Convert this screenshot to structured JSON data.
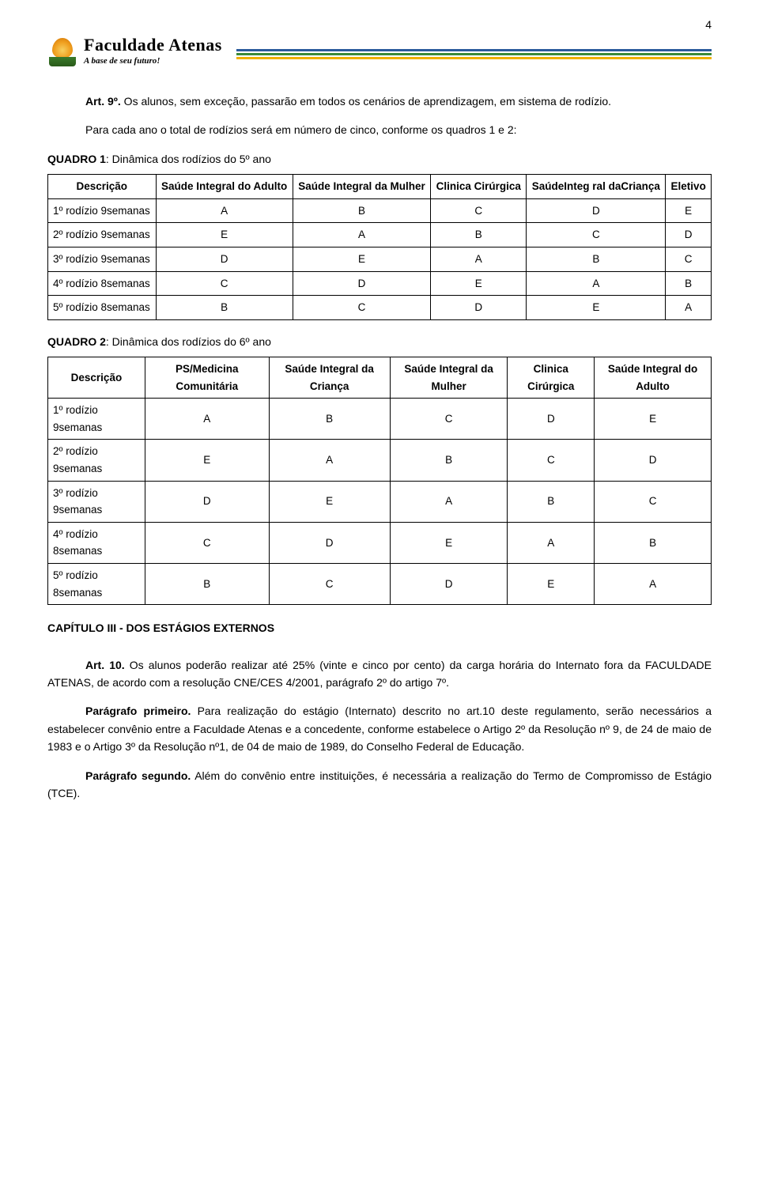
{
  "page_number": "4",
  "brand": {
    "name": "Faculdade Atenas",
    "tagline": "A base de seu futuro!"
  },
  "header_colors": [
    "#2a5a9c",
    "#3a8a3a",
    "#f0b000"
  ],
  "intro": {
    "art_label": "Art. 9º.",
    "art_text": " Os alunos, sem exceção, passarão em todos os cenários de aprendizagem, em sistema de rodízio.",
    "para2": "Para cada ano o total de rodízios será em número de cinco, conforme os quadros 1 e 2:"
  },
  "quadro1": {
    "title_bold": "QUADRO 1",
    "title_rest": ": Dinâmica dos rodízios do 5º ano",
    "columns": [
      "Descrição",
      "Saúde Integral do Adulto",
      "Saúde Integral da Mulher",
      "Clinica Cirúrgica",
      "SaúdeInteg ral daCriança",
      "Eletivo"
    ],
    "rows": [
      {
        "desc": "1º rodízio 9semanas",
        "cells": [
          "A",
          "B",
          "C",
          "D",
          "E"
        ]
      },
      {
        "desc": "2º rodízio 9semanas",
        "cells": [
          "E",
          "A",
          "B",
          "C",
          "D"
        ]
      },
      {
        "desc": "3º rodízio 9semanas",
        "cells": [
          "D",
          "E",
          "A",
          "B",
          "C"
        ]
      },
      {
        "desc": "4º rodízio 8semanas",
        "cells": [
          "C",
          "D",
          "E",
          "A",
          "B"
        ]
      },
      {
        "desc": "5º rodízio 8semanas",
        "cells": [
          "B",
          "C",
          "D",
          "E",
          "A"
        ]
      }
    ]
  },
  "quadro2": {
    "title_bold": "QUADRO 2",
    "title_rest": ": Dinâmica dos rodízios do 6º ano",
    "columns": [
      "Descrição",
      "PS/Medicina Comunitária",
      "Saúde Integral da Criança",
      "Saúde Integral da Mulher",
      "Clinica Cirúrgica",
      "Saúde Integral do Adulto"
    ],
    "rows": [
      {
        "desc": "1º rodízio 9semanas",
        "cells": [
          "A",
          "B",
          "C",
          "D",
          "E"
        ]
      },
      {
        "desc": "2º rodízio 9semanas",
        "cells": [
          "E",
          "A",
          "B",
          "C",
          "D"
        ]
      },
      {
        "desc": "3º rodízio 9semanas",
        "cells": [
          "D",
          "E",
          "A",
          "B",
          "C"
        ]
      },
      {
        "desc": "4º rodízio 8semanas",
        "cells": [
          "C",
          "D",
          "E",
          "A",
          "B"
        ]
      },
      {
        "desc": "5º rodízio 8semanas",
        "cells": [
          "B",
          "C",
          "D",
          "E",
          "A"
        ]
      }
    ]
  },
  "chapter": "CAPÍTULO III - DOS ESTÁGIOS EXTERNOS",
  "art10": {
    "label": "Art. 10.",
    "text": " Os alunos poderão realizar até 25% (vinte e cinco por cento) da carga horária do Internato fora da FACULDADE ATENAS, de acordo com a resolução CNE/CES 4/2001, parágrafo 2º do artigo 7º."
  },
  "p1": {
    "label": "Parágrafo primeiro.",
    "text": " Para realização do estágio (Internato) descrito no art.10 deste regulamento, serão necessários a estabelecer convênio entre a Faculdade Atenas e a concedente, conforme estabelece o Artigo 2º da Resolução nº 9, de 24 de maio de 1983 e o Artigo 3º da Resolução nº1, de 04 de maio de 1989, do Conselho Federal de Educação."
  },
  "p2": {
    "label": "Parágrafo segundo.",
    "text": " Além do convênio entre instituições, é necessária a realização do Termo de Compromisso de Estágio (TCE)."
  }
}
